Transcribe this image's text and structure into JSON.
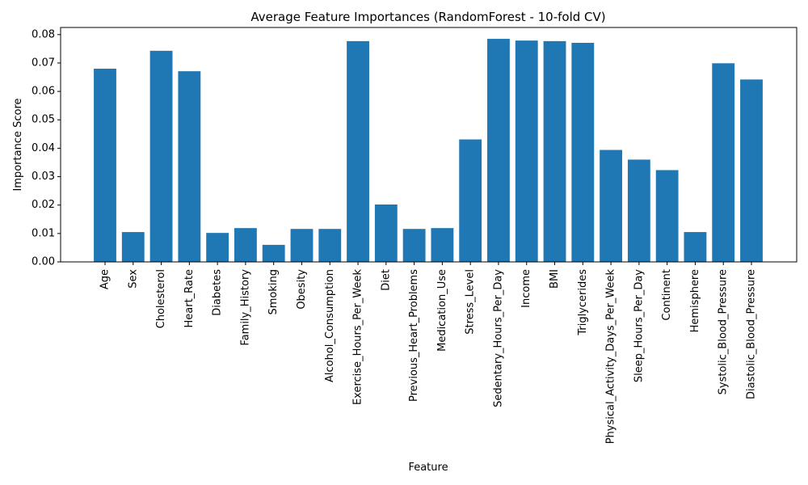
{
  "chart_data": {
    "type": "bar",
    "title": "Average Feature Importances (RandomForest - 10-fold CV)",
    "xlabel": "Feature",
    "ylabel": "Importance Score",
    "ylim": [
      0,
      0.0825
    ],
    "yticks": [
      "0.00",
      "0.01",
      "0.02",
      "0.03",
      "0.04",
      "0.05",
      "0.06",
      "0.07",
      "0.08"
    ],
    "grid": false,
    "bar_color": "#1f77b4",
    "categories": [
      "Age",
      "Sex",
      "Cholesterol",
      "Heart_Rate",
      "Diabetes",
      "Family_History",
      "Smoking",
      "Obesity",
      "Alcohol_Consumption",
      "Exercise_Hours_Per_Week",
      "Diet",
      "Previous_Heart_Problems",
      "Medication_Use",
      "Stress_Level",
      "Sedentary_Hours_Per_Day",
      "Income",
      "BMI",
      "Triglycerides",
      "Physical_Activity_Days_Per_Week",
      "Sleep_Hours_Per_Day",
      "Continent",
      "Hemisphere",
      "Systolic_Blood_Pressure",
      "Diastolic_Blood_Pressure"
    ],
    "values": [
      0.068,
      0.0105,
      0.0743,
      0.0671,
      0.0102,
      0.0119,
      0.006,
      0.0116,
      0.0116,
      0.0777,
      0.0202,
      0.0116,
      0.0119,
      0.0431,
      0.0785,
      0.0779,
      0.0777,
      0.0771,
      0.0394,
      0.036,
      0.0323,
      0.0105,
      0.0699,
      0.0642
    ]
  }
}
